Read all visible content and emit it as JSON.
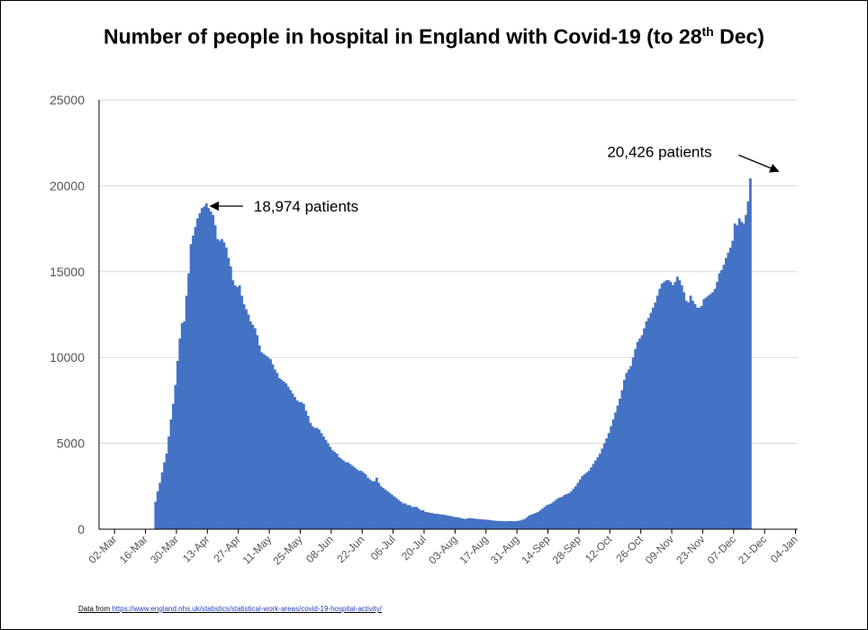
{
  "title": {
    "main": "Number of people in hospital in England with Covid-19 (to 28",
    "sup": "th",
    "tail": " Dec)"
  },
  "source": {
    "prefix": "Data from ",
    "url": "https://www.england.nhs.uk/statistics/statistical-work-areas/covid-19-hospital-activity/"
  },
  "colors": {
    "bar": "#4472c4",
    "grid": "#d9d9d9",
    "axis": "#000000"
  },
  "chart_data": {
    "type": "bar",
    "ylim": [
      0,
      25000
    ],
    "yticks": [
      0,
      5000,
      10000,
      15000,
      20000,
      25000
    ],
    "grid": true,
    "x_tick_labels": [
      "02-Mar",
      "16-Mar",
      "30-Mar",
      "13-Apr",
      "27-Apr",
      "11-May",
      "25-May",
      "08-Jun",
      "22-Jun",
      "06-Jul",
      "20-Jul",
      "03-Aug",
      "17-Aug",
      "31-Aug",
      "14-Sep",
      "28-Sep",
      "12-Oct",
      "26-Oct",
      "09-Nov",
      "23-Nov",
      "07-Dec",
      "21-Dec",
      "04-Jan"
    ],
    "series": [
      {
        "start_date": "2020-03-20",
        "end_date": "2020-12-28",
        "values": [
          1600,
          2200,
          2700,
          3300,
          3900,
          4400,
          5400,
          6400,
          7300,
          8400,
          9800,
          11100,
          12000,
          12100,
          13600,
          14900,
          16600,
          17100,
          17600,
          18100,
          18400,
          18700,
          18800,
          18974,
          18700,
          18500,
          18300,
          17700,
          16900,
          16800,
          16900,
          16700,
          16400,
          15800,
          15300,
          14500,
          14200,
          14100,
          14200,
          13600,
          13100,
          12800,
          12500,
          12100,
          11900,
          11700,
          11300,
          10700,
          10300,
          10200,
          10100,
          10000,
          9900,
          9600,
          9300,
          9100,
          8800,
          8700,
          8600,
          8500,
          8300,
          8100,
          7900,
          7700,
          7500,
          7400,
          7400,
          7300,
          6900,
          6600,
          6200,
          6000,
          5900,
          5900,
          5800,
          5600,
          5400,
          5200,
          5000,
          4800,
          4600,
          4500,
          4400,
          4200,
          4100,
          4000,
          3900,
          3900,
          3800,
          3700,
          3600,
          3500,
          3400,
          3400,
          3300,
          3200,
          3000,
          2900,
          2800,
          2800,
          3000,
          2700,
          2500,
          2400,
          2300,
          2200,
          2100,
          2000,
          1900,
          1800,
          1700,
          1600,
          1500,
          1500,
          1400,
          1400,
          1300,
          1300,
          1300,
          1200,
          1100,
          1100,
          1000,
          1000,
          950,
          950,
          900,
          900,
          880,
          860,
          850,
          830,
          800,
          780,
          750,
          720,
          700,
          690,
          650,
          620,
          600,
          620,
          650,
          630,
          620,
          600,
          590,
          580,
          570,
          560,
          550,
          540,
          520,
          500,
          490,
          480,
          480,
          470,
          460,
          470,
          480,
          470,
          460,
          470,
          490,
          510,
          550,
          600,
          700,
          800,
          850,
          900,
          950,
          1000,
          1100,
          1200,
          1300,
          1400,
          1450,
          1500,
          1600,
          1700,
          1800,
          1850,
          1900,
          2000,
          2050,
          2100,
          2200,
          2350,
          2500,
          2700,
          2900,
          3100,
          3200,
          3300,
          3400,
          3600,
          3800,
          4000,
          4200,
          4400,
          4700,
          5000,
          5300,
          5600,
          6000,
          6400,
          6800,
          7200,
          7600,
          8100,
          8700,
          9100,
          9300,
          9500,
          10000,
          10500,
          10900,
          11100,
          11300,
          11700,
          12100,
          12300,
          12600,
          12900,
          13200,
          13600,
          14000,
          14300,
          14400,
          14500,
          14500,
          14400,
          14200,
          14400,
          14700,
          14500,
          14200,
          13800,
          13300,
          13200,
          13600,
          13300,
          13100,
          12900,
          12900,
          13000,
          13400,
          13500,
          13600,
          13700,
          13800,
          14000,
          14400,
          14900,
          15100,
          15400,
          15800,
          16100,
          16400,
          16800,
          17800,
          17700,
          18100,
          17900,
          17800,
          18300,
          19100,
          20426
        ]
      }
    ],
    "annotations": [
      {
        "text": "18,974 patients",
        "date": "2020-04-12",
        "value": 18974
      },
      {
        "text": "20,426 patients",
        "date": "2020-12-28",
        "value": 20426
      }
    ]
  }
}
